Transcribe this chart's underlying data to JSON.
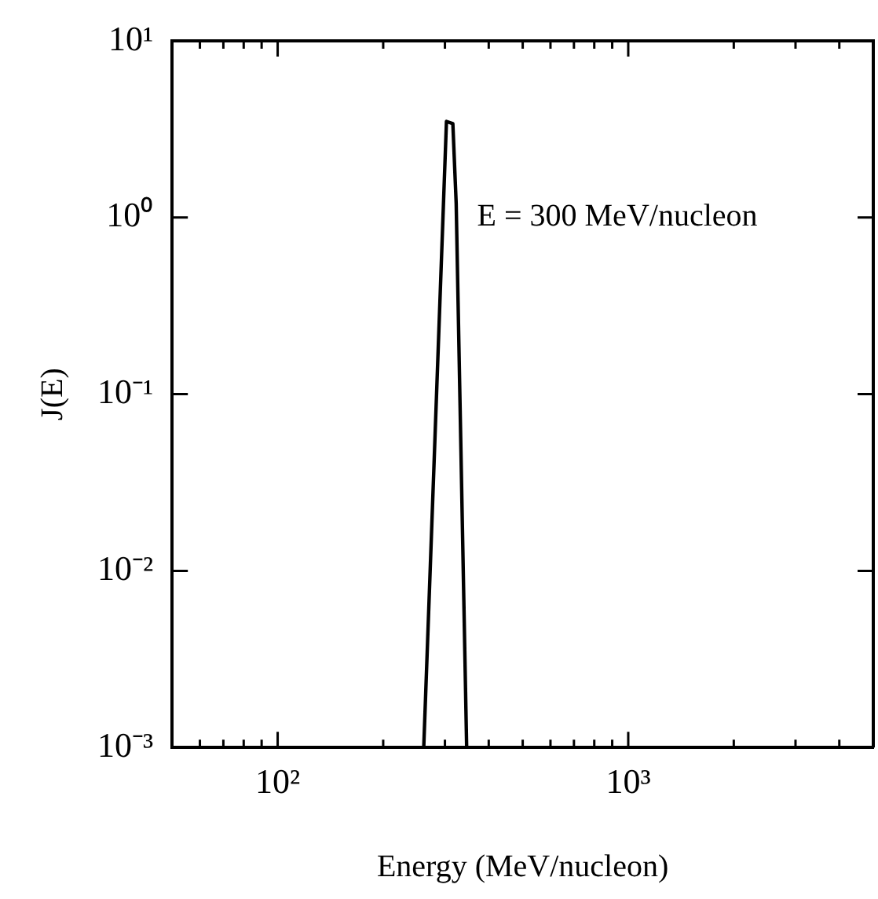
{
  "chart_data": {
    "type": "line",
    "xlabel": "Energy (MeV/nucleon)",
    "ylabel": "J(E)",
    "x": [
      261,
      303,
      316,
      323,
      346
    ],
    "series": [
      {
        "color": "#000000",
        "values": [
          0.001,
          3.5,
          3.4,
          1.2,
          0.001
        ]
      }
    ],
    "log": "xy",
    "xlim": [
      50,
      5000
    ],
    "ylim": [
      0.001,
      10
    ],
    "xticks": [
      {
        "value": 50,
        "label": null
      },
      {
        "value": 60,
        "label": null
      },
      {
        "value": 70,
        "label": null
      },
      {
        "value": 80,
        "label": null
      },
      {
        "value": 90,
        "label": null
      },
      {
        "value": 100,
        "label": "10²"
      },
      {
        "value": 200,
        "label": null
      },
      {
        "value": 300,
        "label": null
      },
      {
        "value": 400,
        "label": null
      },
      {
        "value": 500,
        "label": null
      },
      {
        "value": 600,
        "label": null
      },
      {
        "value": 700,
        "label": null
      },
      {
        "value": 800,
        "label": null
      },
      {
        "value": 900,
        "label": null
      },
      {
        "value": 1000,
        "label": "10³"
      },
      {
        "value": 2000,
        "label": null
      },
      {
        "value": 3000,
        "label": null
      },
      {
        "value": 4000,
        "label": null
      }
    ],
    "yticks": [
      {
        "value": 0.001,
        "label": "10⁻³"
      },
      {
        "value": 0.01,
        "label": "10⁻²"
      },
      {
        "value": 0.1,
        "label": "10⁻¹"
      },
      {
        "value": 1,
        "label": "10⁰"
      },
      {
        "value": 10,
        "label": "10¹"
      }
    ],
    "annotations": [
      "E = 300 MeV/nucleon"
    ],
    "marker": "none",
    "line_style": "solid",
    "grid": false,
    "legend": false
  }
}
